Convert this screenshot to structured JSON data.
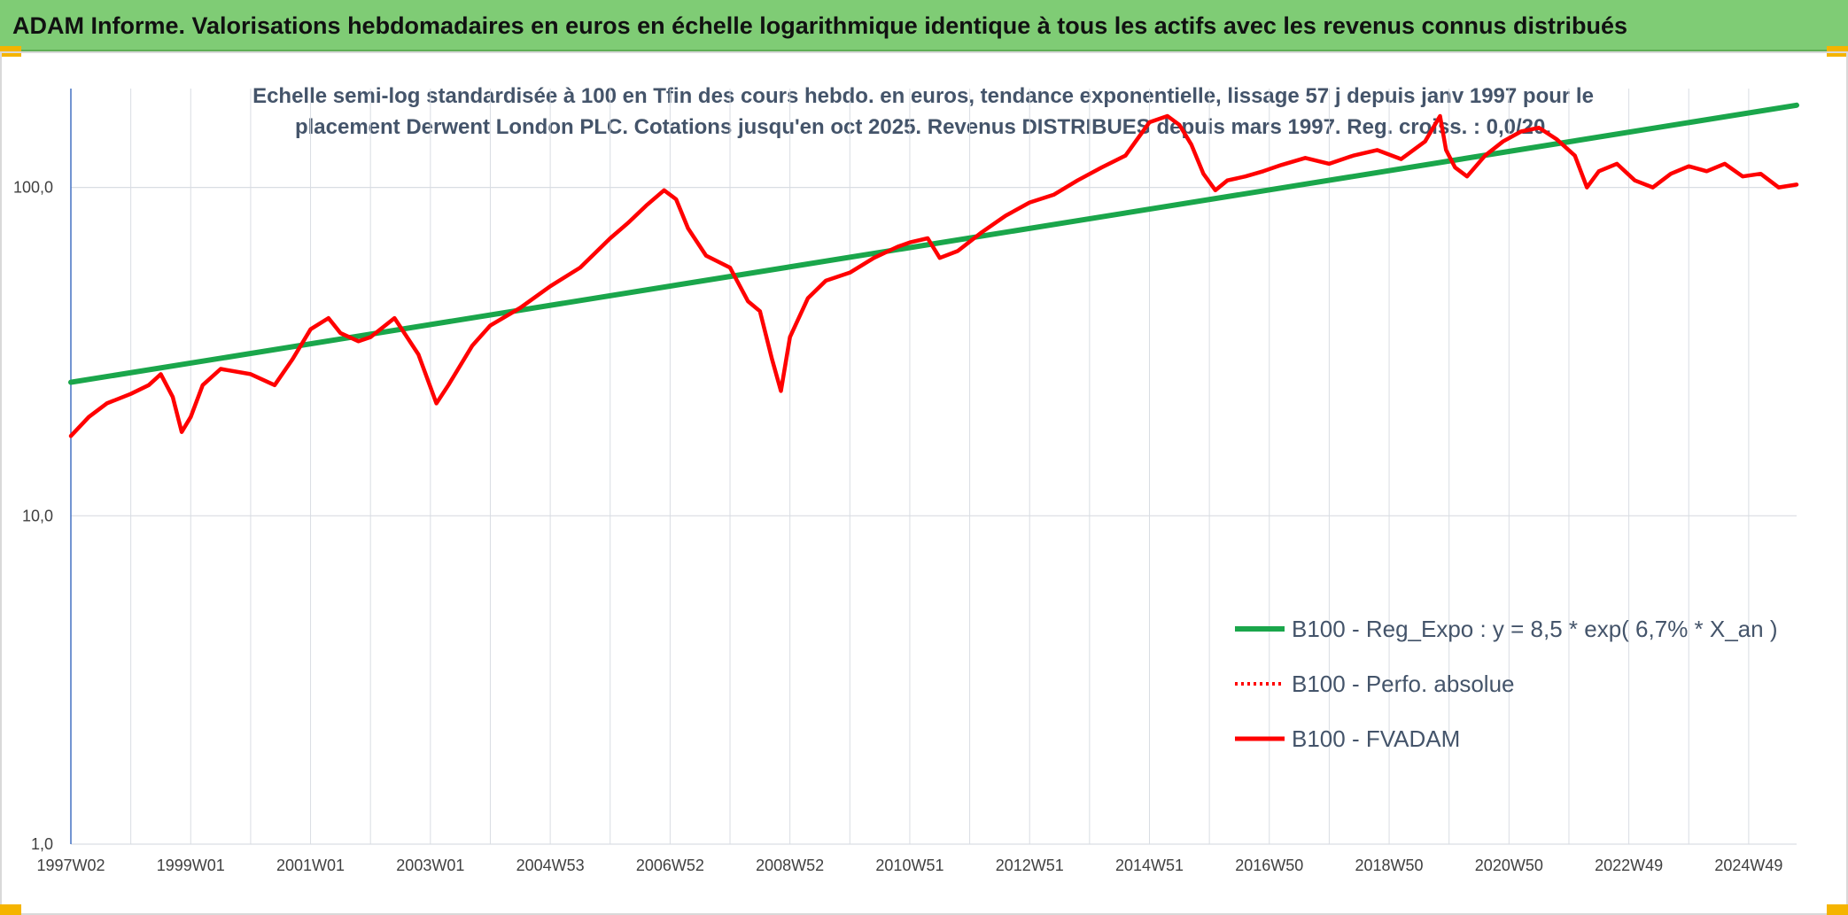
{
  "header": {
    "title": "ADAM Informe. Valorisations hebdomadaires en euros en échelle logarithmique identique à tous les actifs avec les revenus connus distribués"
  },
  "colors": {
    "banner": "#7fcc75",
    "corner": "#f5b400",
    "trend": "#1aa64b",
    "price": "#ff0000",
    "grid": "#d9dde3",
    "axis": "#4472c4"
  },
  "chart_data": {
    "type": "line",
    "subtitle_lines": [
      "Echelle semi-log standardisée à 100 en Tfin des cours hebdo. en euros, tendance exponentielle, lissage 57 j depuis janv 1997 pour le",
      "placement Derwent London PLC. Cotations jusqu'en oct 2025. Revenus DISTRIBUES depuis mars 1997. Reg. croiss. : 0,0/20."
    ],
    "y_scale": "log",
    "ylim": [
      1,
      200
    ],
    "y_ticks": [
      {
        "value": 1,
        "label": "1,0"
      },
      {
        "value": 10,
        "label": "10,0"
      },
      {
        "value": 100,
        "label": "100,0"
      }
    ],
    "xlim": [
      1997.0,
      2025.8
    ],
    "x_ticks": [
      {
        "value": 1997.0,
        "label": "1997W02"
      },
      {
        "value": 1999.0,
        "label": "1999W01"
      },
      {
        "value": 2001.0,
        "label": "2001W01"
      },
      {
        "value": 2003.0,
        "label": "2003W01"
      },
      {
        "value": 2005.0,
        "label": "2004W53"
      },
      {
        "value": 2007.0,
        "label": "2006W52"
      },
      {
        "value": 2009.0,
        "label": "2008W52"
      },
      {
        "value": 2011.0,
        "label": "2010W51"
      },
      {
        "value": 2013.0,
        "label": "2012W51"
      },
      {
        "value": 2015.0,
        "label": "2014W51"
      },
      {
        "value": 2017.0,
        "label": "2016W50"
      },
      {
        "value": 2019.0,
        "label": "2018W50"
      },
      {
        "value": 2021.0,
        "label": "2020W50"
      },
      {
        "value": 2023.0,
        "label": "2022W49"
      },
      {
        "value": 2025.0,
        "label": "2024W49"
      }
    ],
    "x_gridlines": [
      1997.0,
      1998.0,
      1999.0,
      2000.0,
      2001.0,
      2002.0,
      2003.0,
      2004.0,
      2005.0,
      2006.0,
      2007.0,
      2008.0,
      2009.0,
      2010.0,
      2011.0,
      2012.0,
      2013.0,
      2014.0,
      2015.0,
      2016.0,
      2017.0,
      2018.0,
      2019.0,
      2020.0,
      2021.0,
      2022.0,
      2023.0,
      2024.0,
      2025.0
    ],
    "legend_position": "right",
    "series": [
      {
        "name": "B100 - Reg_Expo : y = 8,5 * exp( 6,7% *  X_an )",
        "style": "solid-green",
        "x": [
          1997.0,
          2025.8
        ],
        "values": [
          25.5,
          178
        ]
      },
      {
        "name": "B100 - Perfo. absolue",
        "style": "dotted-red",
        "x": [],
        "values": []
      },
      {
        "name": "B100 - FVADAM",
        "style": "solid-red",
        "x": [
          1997.0,
          1997.3,
          1997.6,
          1998.0,
          1998.3,
          1998.5,
          1998.7,
          1998.85,
          1999.0,
          1999.2,
          1999.5,
          2000.0,
          2000.4,
          2000.7,
          2001.0,
          2001.3,
          2001.5,
          2001.8,
          2002.0,
          2002.4,
          2002.8,
          2003.1,
          2003.3,
          2003.7,
          2004.0,
          2004.5,
          2005.0,
          2005.5,
          2006.0,
          2006.3,
          2006.6,
          2006.9,
          2007.1,
          2007.3,
          2007.6,
          2008.0,
          2008.3,
          2008.5,
          2008.7,
          2008.85,
          2009.0,
          2009.3,
          2009.6,
          2010.0,
          2010.4,
          2010.8,
          2011.0,
          2011.3,
          2011.5,
          2011.8,
          2012.2,
          2012.6,
          2013.0,
          2013.4,
          2013.8,
          2014.2,
          2014.6,
          2015.0,
          2015.3,
          2015.5,
          2015.7,
          2015.9,
          2016.1,
          2016.3,
          2016.6,
          2016.9,
          2017.2,
          2017.6,
          2018.0,
          2018.4,
          2018.8,
          2019.2,
          2019.6,
          2019.85,
          2019.95,
          2020.1,
          2020.3,
          2020.6,
          2020.9,
          2021.2,
          2021.5,
          2021.8,
          2022.1,
          2022.3,
          2022.5,
          2022.8,
          2023.1,
          2023.4,
          2023.7,
          2024.0,
          2024.3,
          2024.6,
          2024.9,
          2025.2,
          2025.5,
          2025.8
        ],
        "values": [
          17.5,
          20,
          22,
          23.5,
          25,
          27,
          23,
          18,
          20,
          25,
          28,
          27,
          25,
          30,
          37,
          40,
          36,
          34,
          35,
          40,
          31,
          22,
          25,
          33,
          38,
          43,
          50,
          57,
          70,
          78,
          88,
          98,
          92,
          75,
          62,
          57,
          45,
          42,
          30,
          24,
          35,
          46,
          52,
          55,
          61,
          66,
          68,
          70,
          61,
          64,
          73,
          82,
          90,
          95,
          105,
          115,
          125,
          158,
          165,
          155,
          135,
          110,
          98,
          105,
          108,
          112,
          117,
          123,
          118,
          125,
          130,
          122,
          138,
          165,
          130,
          115,
          108,
          125,
          138,
          148,
          152,
          140,
          125,
          100,
          112,
          118,
          105,
          100,
          110,
          116,
          112,
          118,
          108,
          110,
          100,
          102
        ]
      }
    ]
  }
}
